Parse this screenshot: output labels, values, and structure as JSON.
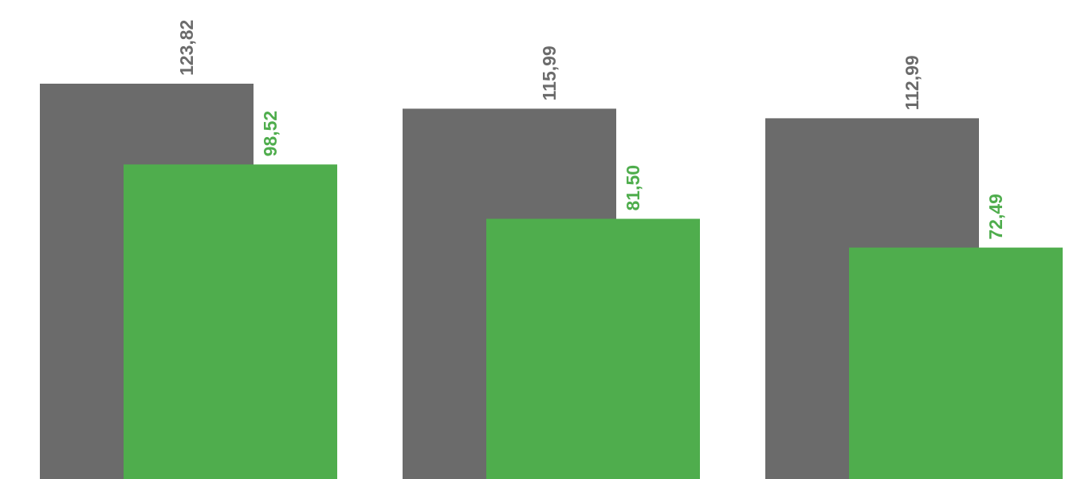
{
  "chart_data": {
    "type": "bar",
    "categories": [
      "",
      "",
      ""
    ],
    "series": [
      {
        "values": [
          123.82,
          115.99,
          112.99
        ],
        "labels": [
          "123,82",
          "115,99",
          "112,99"
        ],
        "color": "#6b6b6b"
      },
      {
        "values": [
          98.52,
          81.5,
          72.49
        ],
        "labels": [
          "98,52",
          "81,50",
          "72,49"
        ],
        "color": "#4fad4d"
      }
    ],
    "ylim": [
      0,
      123.82
    ],
    "grid": false,
    "overlap": true
  }
}
